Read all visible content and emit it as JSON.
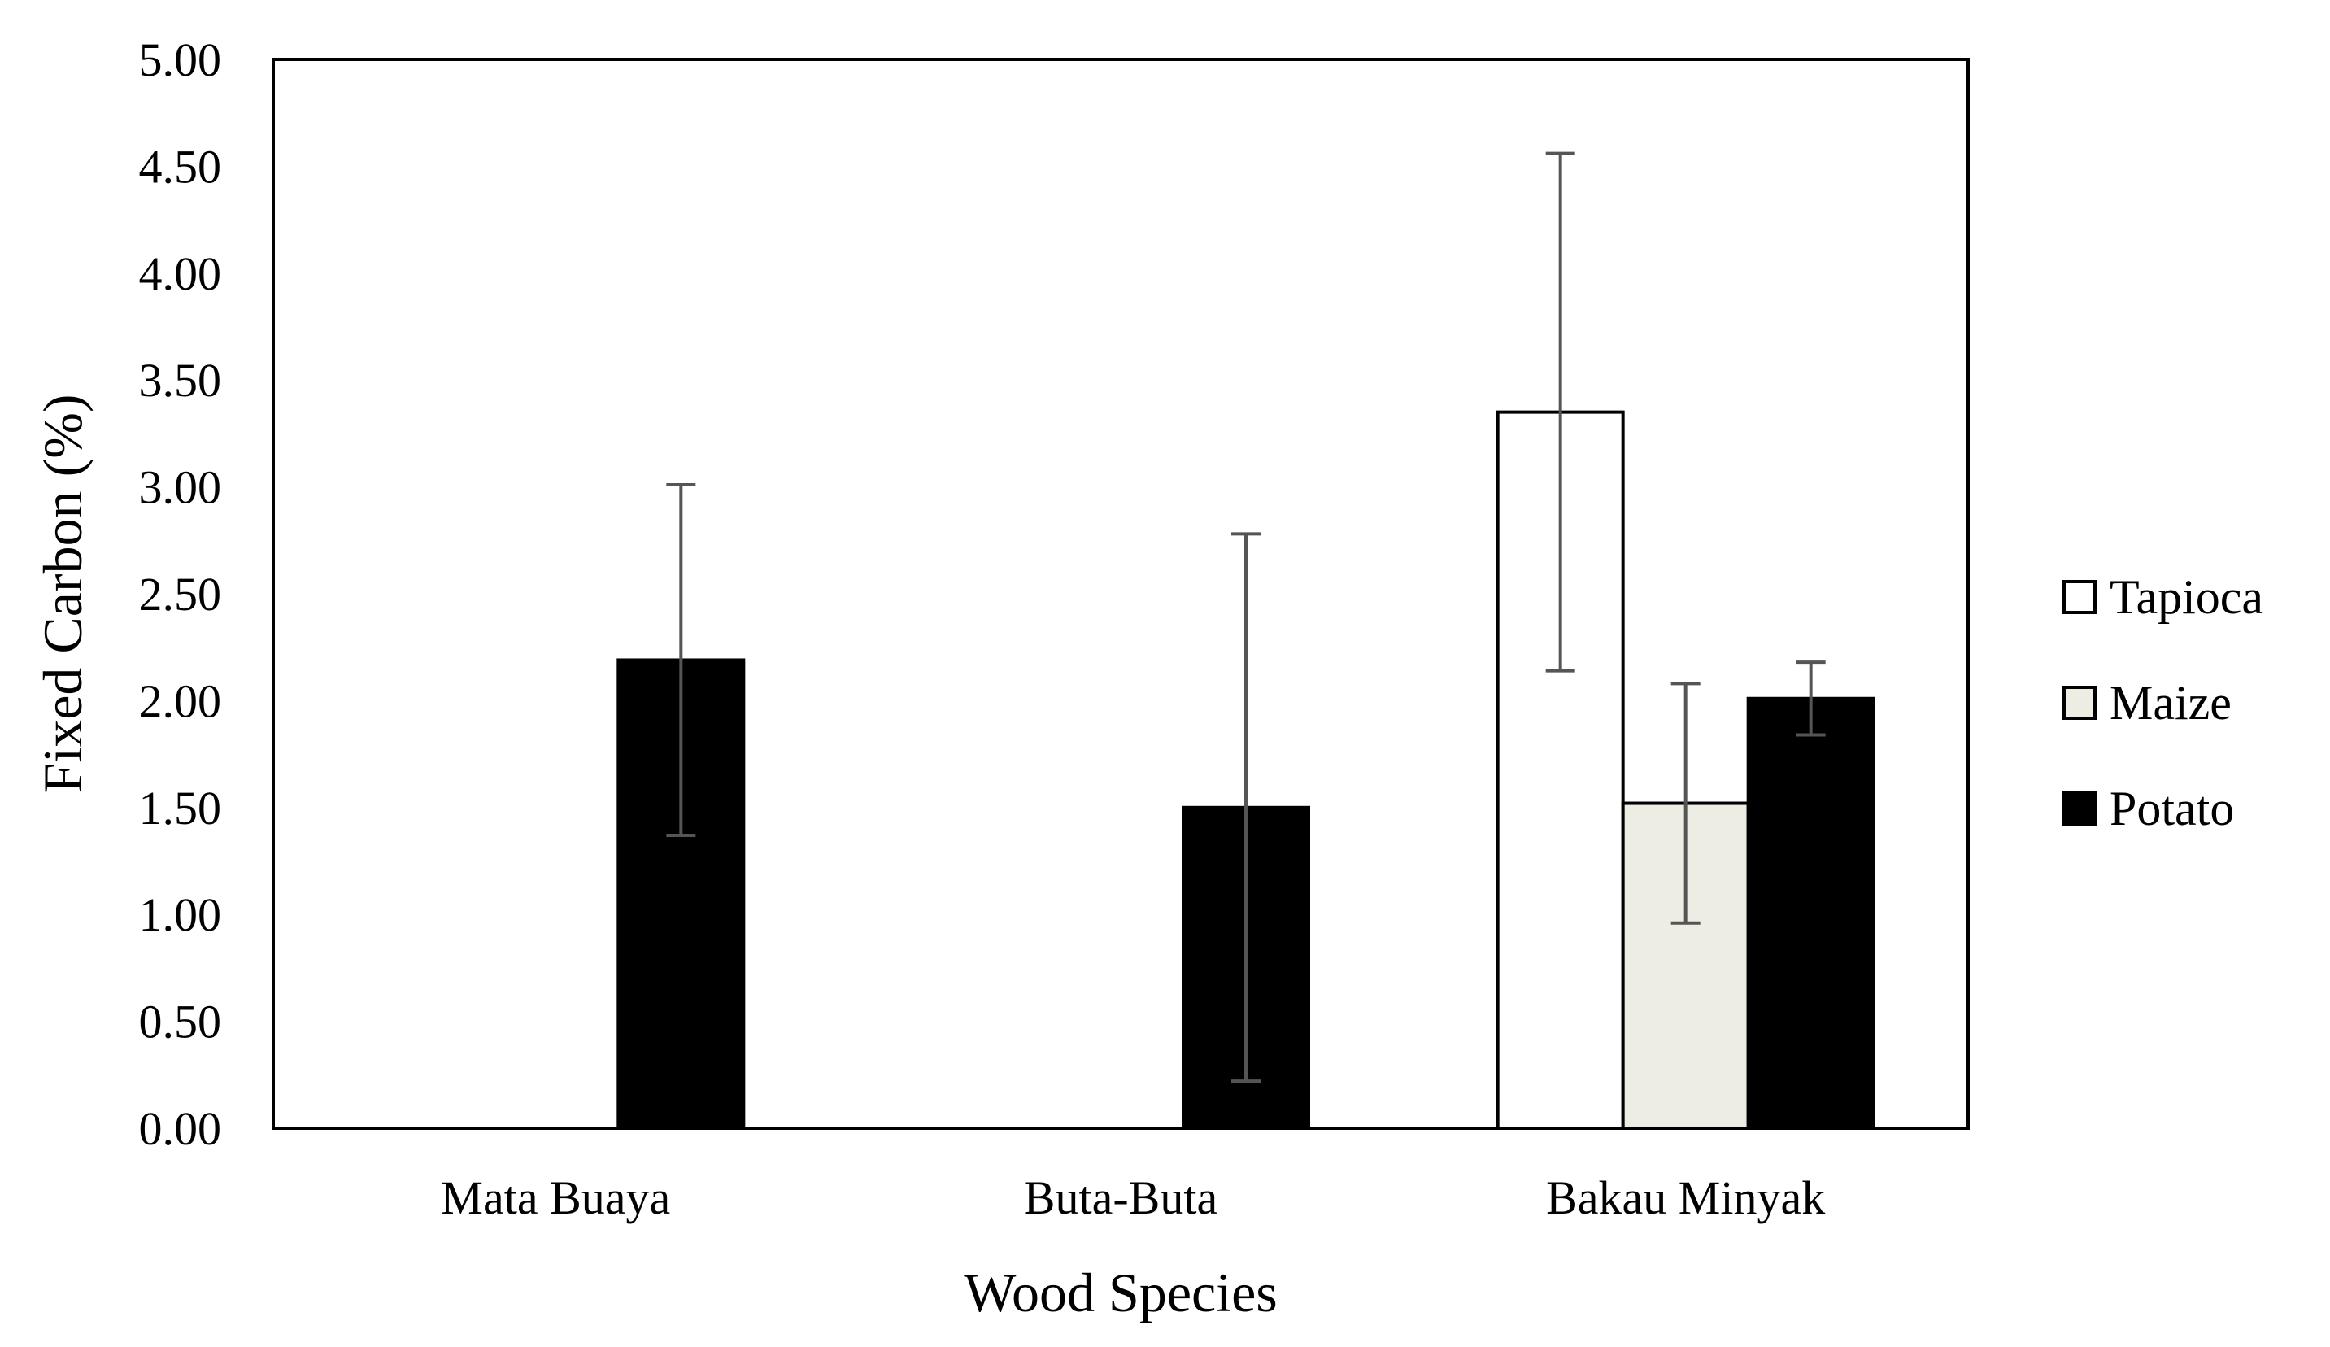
{
  "chart_data": {
    "type": "bar",
    "title": "",
    "xlabel": "Wood Species",
    "ylabel": "Fixed Carbon (%)",
    "ylim": [
      0,
      5
    ],
    "yticks": [
      "0.00",
      "0.50",
      "1.00",
      "1.50",
      "2.00",
      "2.50",
      "3.00",
      "3.50",
      "4.00",
      "4.50",
      "5.00"
    ],
    "categories": [
      "Mata Buaya",
      "Buta-Buta",
      "Bakau Minyak"
    ],
    "series": [
      {
        "name": "Tapioca",
        "color": "#ffffff",
        "values": [
          null,
          null,
          3.35
        ],
        "errors": [
          null,
          null,
          1.21
        ]
      },
      {
        "name": "Maize",
        "color": "#eeede3",
        "values": [
          null,
          null,
          1.52
        ],
        "errors": [
          null,
          null,
          0.56
        ]
      },
      {
        "name": "Potato",
        "color": "#000000",
        "values": [
          2.19,
          1.5,
          2.01
        ],
        "errors": [
          0.82,
          1.28,
          0.17
        ]
      }
    ],
    "legend_position": "right",
    "grid": false
  }
}
